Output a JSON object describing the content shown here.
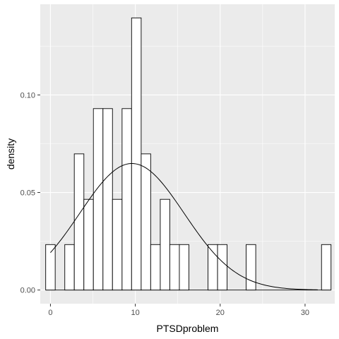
{
  "chart_data": {
    "type": "histogram",
    "xlabel": "PTSDproblem",
    "ylabel": "density",
    "xlim": [
      -1.2,
      33.5
    ],
    "ylim": [
      -0.007,
      0.1465
    ],
    "x_ticks": [
      0,
      10,
      20,
      30
    ],
    "x_tick_labels": [
      "0",
      "10",
      "20",
      "30"
    ],
    "y_ticks": [
      0.0,
      0.05,
      0.1
    ],
    "y_tick_labels": [
      "0.00",
      "0.05",
      "0.10"
    ],
    "grid": true,
    "background": "#ebebeb",
    "grid_color": "#ffffff",
    "bar_fill": "#ffffff",
    "bar_outline": "#000000",
    "bins": [
      {
        "x0": -0.56,
        "x1": 0.56,
        "density": 0.0233
      },
      {
        "x0": 1.69,
        "x1": 2.81,
        "density": 0.0233
      },
      {
        "x0": 2.81,
        "x1": 3.94,
        "density": 0.0698
      },
      {
        "x0": 3.94,
        "x1": 5.06,
        "density": 0.0465
      },
      {
        "x0": 5.06,
        "x1": 6.19,
        "density": 0.093
      },
      {
        "x0": 6.19,
        "x1": 7.31,
        "density": 0.093
      },
      {
        "x0": 7.31,
        "x1": 8.44,
        "density": 0.0465
      },
      {
        "x0": 8.44,
        "x1": 9.56,
        "density": 0.093
      },
      {
        "x0": 9.56,
        "x1": 10.69,
        "density": 0.1395
      },
      {
        "x0": 10.69,
        "x1": 11.81,
        "density": 0.0698
      },
      {
        "x0": 11.81,
        "x1": 12.94,
        "density": 0.0233
      },
      {
        "x0": 12.94,
        "x1": 14.06,
        "density": 0.0465
      },
      {
        "x0": 14.06,
        "x1": 15.19,
        "density": 0.0233
      },
      {
        "x0": 15.19,
        "x1": 16.31,
        "density": 0.0233
      },
      {
        "x0": 18.56,
        "x1": 19.69,
        "density": 0.0233
      },
      {
        "x0": 19.69,
        "x1": 20.81,
        "density": 0.0233
      },
      {
        "x0": 23.06,
        "x1": 24.19,
        "density": 0.0233
      },
      {
        "x0": 31.94,
        "x1": 33.06,
        "density": 0.0233
      }
    ],
    "baseline": {
      "x0": -0.56,
      "x1": 33.06,
      "density": 0
    },
    "density_curve": {
      "type": "normal",
      "mean": 9.6,
      "sd": 6.15,
      "x_start": 0,
      "x_end": 31.5,
      "color": "#000000"
    }
  }
}
